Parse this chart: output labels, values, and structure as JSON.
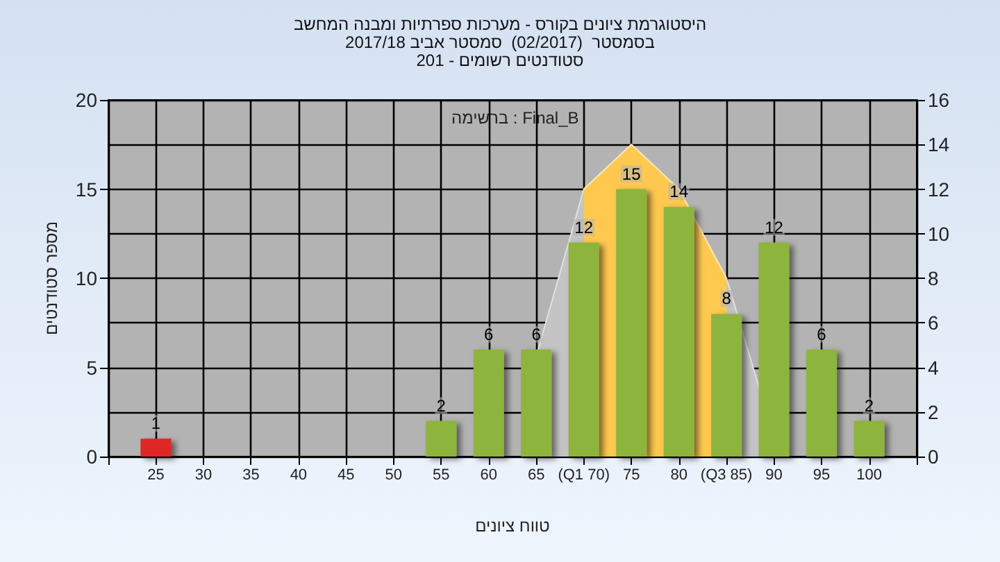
{
  "chart_data": {
    "type": "bar",
    "title": "היסטוגרמת ציונים בקורס - מערכות ספרתיות ומבנה המחשב",
    "subtitle": "בסמסטר  (02/2017)  סמסטר אביב 2017/18\nסטודנטים רשומים - 201",
    "xlabel": "טווח ציונים",
    "ylabel": "מספר סטודנטים",
    "annotations": [
      "ברשימה : Final_B"
    ],
    "xlim": [
      20,
      105
    ],
    "xticks": [
      {
        "value": 20,
        "label": null
      },
      25,
      30,
      35,
      40,
      45,
      50,
      55,
      60,
      65,
      {
        "value": 70,
        "label": "(Q1 70)"
      },
      75,
      80,
      {
        "value": 85,
        "label": "(Q3 85)"
      },
      90,
      95,
      100,
      {
        "value": 105,
        "label": null
      }
    ],
    "ylim": [
      0,
      20
    ],
    "yticks": [
      0,
      5,
      10,
      15,
      20
    ],
    "y2lim": [
      0,
      16
    ],
    "y2ticks": [
      0,
      2,
      4,
      6,
      8,
      10,
      12,
      14,
      16
    ],
    "grid": true,
    "series": [
      {
        "type": "area",
        "axis": "y2",
        "color": "#c4c4c4",
        "x": [
          65,
          70,
          75,
          80,
          85,
          88.5
        ],
        "values": [
          4.5,
          12,
          14,
          12,
          8,
          3
        ]
      },
      {
        "type": "area",
        "axis": "y2",
        "color": "#ffc94f",
        "x": [
          70,
          75,
          80,
          85
        ],
        "values": [
          12,
          14,
          12,
          8
        ]
      },
      {
        "color": "#8db43e",
        "colors": [
          "#e02525",
          "#8db43e",
          "#8db43e",
          "#8db43e",
          "#8db43e",
          "#8db43e",
          "#8db43e",
          "#8db43e",
          "#8db43e",
          "#8db43e",
          "#8db43e"
        ],
        "x": [
          25,
          55,
          60,
          65,
          70,
          75,
          80,
          85,
          90,
          95,
          100
        ],
        "values": [
          1,
          2,
          6,
          6,
          12,
          15,
          14,
          8,
          12,
          6,
          2
        ],
        "data_labels": true
      }
    ]
  }
}
